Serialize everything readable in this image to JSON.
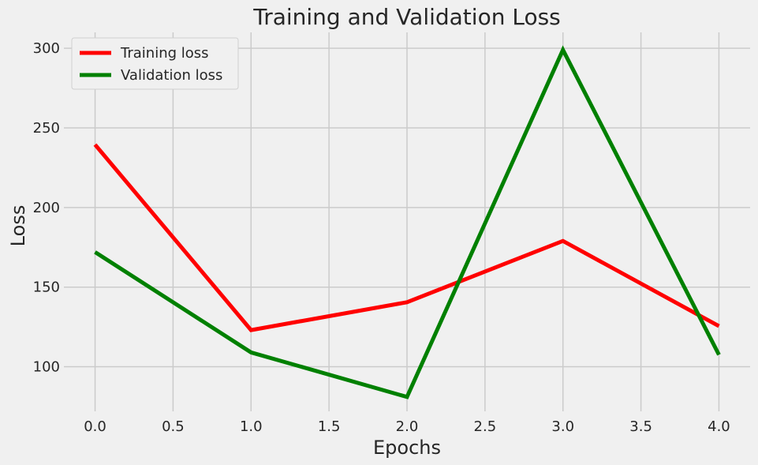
{
  "chart_data": {
    "type": "line",
    "title": "Training and Validation Loss",
    "xlabel": "Epochs",
    "ylabel": "Loss",
    "x": [
      0,
      1,
      2,
      3,
      4
    ],
    "xlim": [
      -0.2,
      4.2
    ],
    "ylim": [
      72,
      310
    ],
    "xticks": [
      "0.0",
      "0.5",
      "1.0",
      "1.5",
      "2.0",
      "2.5",
      "3.0",
      "3.5",
      "4.0"
    ],
    "xtick_values": [
      0,
      0.5,
      1,
      1.5,
      2,
      2.5,
      3,
      3.5,
      4
    ],
    "yticks": [
      "100",
      "150",
      "200",
      "250",
      "300"
    ],
    "ytick_values": [
      100,
      150,
      200,
      250,
      300
    ],
    "grid": true,
    "legend_position": "top-left",
    "series": [
      {
        "name": "Training loss",
        "color": "#ff0000",
        "values": [
          239.5,
          123,
          140.5,
          179,
          125.5
        ]
      },
      {
        "name": "Validation loss",
        "color": "#008000",
        "values": [
          172,
          109,
          81,
          299,
          107.5
        ]
      }
    ]
  }
}
